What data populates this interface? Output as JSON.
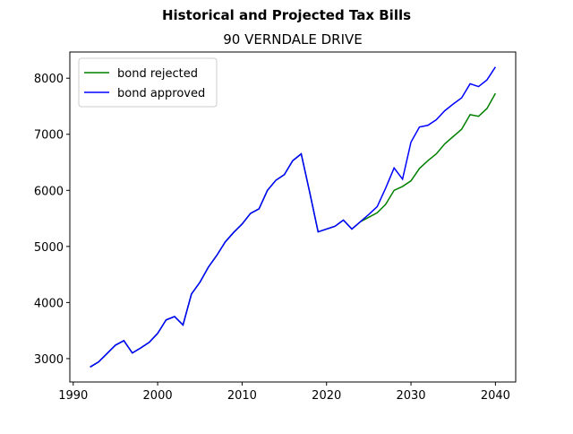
{
  "chart_data": {
    "type": "line",
    "title": "Historical and Projected Tax Bills",
    "subtitle": "90 VERNDALE DRIVE",
    "x": [
      1992,
      1993,
      1994,
      1995,
      1996,
      1997,
      1998,
      1999,
      2000,
      2001,
      2002,
      2003,
      2004,
      2005,
      2006,
      2007,
      2008,
      2009,
      2010,
      2011,
      2012,
      2013,
      2014,
      2015,
      2016,
      2017,
      2018,
      2019,
      2020,
      2021,
      2022,
      2023,
      2024,
      2025,
      2026,
      2027,
      2028,
      2029,
      2030,
      2031,
      2032,
      2033,
      2034,
      2035,
      2036,
      2037,
      2038,
      2039,
      2040
    ],
    "series": [
      {
        "name": "bond rejected",
        "color": "#008000",
        "values": [
          2850,
          2940,
          3090,
          3240,
          3320,
          3100,
          3190,
          3290,
          3450,
          3690,
          3750,
          3600,
          4150,
          4360,
          4630,
          4840,
          5080,
          5250,
          5400,
          5590,
          5670,
          6000,
          6180,
          6280,
          6530,
          6650,
          5970,
          5260,
          5310,
          5360,
          5470,
          5310,
          5440,
          5520,
          5600,
          5750,
          6000,
          6070,
          6170,
          6390,
          6530,
          6650,
          6830,
          6960,
          7090,
          7350,
          7320,
          7460,
          7730
        ]
      },
      {
        "name": "bond approved",
        "color": "#0000ff",
        "values": [
          2850,
          2940,
          3090,
          3240,
          3320,
          3100,
          3190,
          3290,
          3450,
          3690,
          3750,
          3600,
          4150,
          4360,
          4630,
          4840,
          5080,
          5250,
          5400,
          5590,
          5670,
          6000,
          6180,
          6280,
          6530,
          6650,
          5970,
          5260,
          5310,
          5360,
          5470,
          5310,
          5440,
          5570,
          5710,
          6040,
          6400,
          6200,
          6860,
          7130,
          7160,
          7260,
          7420,
          7540,
          7650,
          7900,
          7850,
          7970,
          8200
        ]
      }
    ],
    "xlim": [
      1989.6,
      2042.4
    ],
    "ylim": [
      2583,
      8467
    ],
    "xticks": [
      1990,
      2000,
      2010,
      2020,
      2030,
      2040
    ],
    "yticks": [
      3000,
      4000,
      5000,
      6000,
      7000,
      8000
    ],
    "legend": "upper left"
  }
}
